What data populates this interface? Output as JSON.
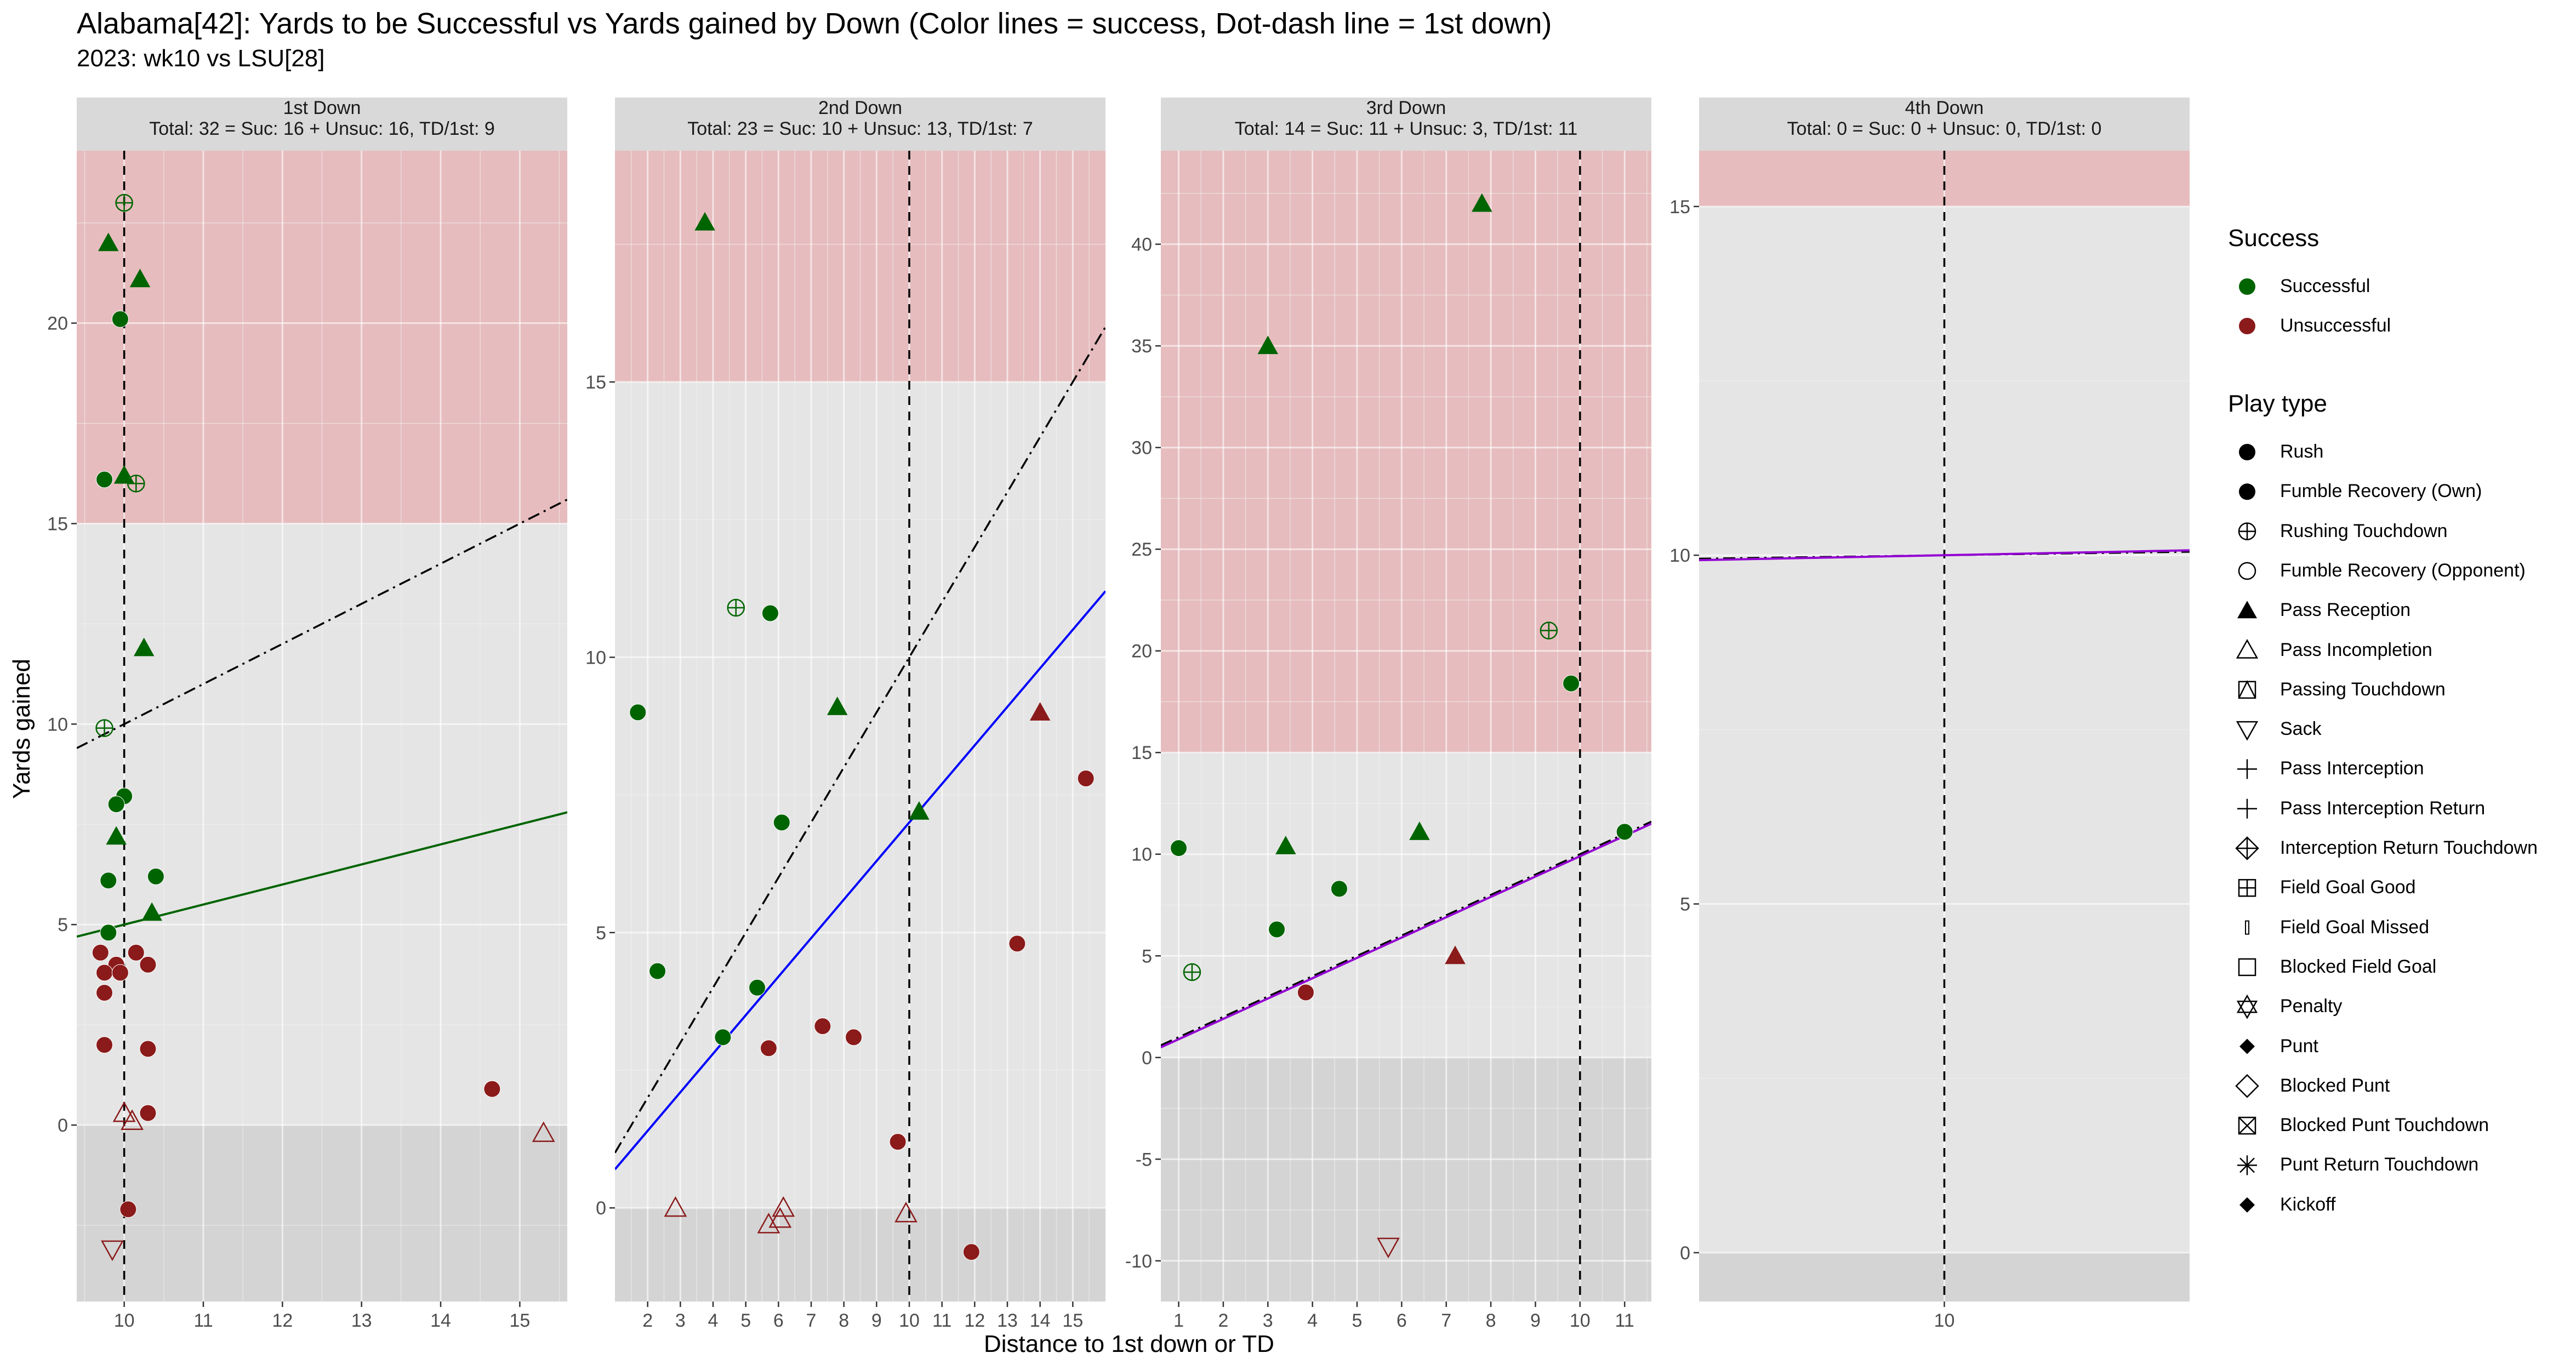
{
  "title": "Alabama[42]: Yards to be Successful vs Yards gained by Down  (Color lines = success, Dot-dash line = 1st down)",
  "subtitle": "2023: wk10 vs LSU[28]",
  "colors": {
    "successful": "#006400",
    "unsuccessful": "#8B1A1A",
    "panel_bg": "#E5E5E5",
    "red_zone": "#E6BCBE",
    "neg_zone": "#D4D4D4",
    "strip_bg": "#D9D9D9"
  },
  "legend": {
    "success_title": "Success",
    "success_items": [
      {
        "label": "Successful",
        "color": "#006400"
      },
      {
        "label": "Unsuccessful",
        "color": "#8B1A1A"
      }
    ],
    "playtype_title": "Play type",
    "playtype_items": [
      {
        "label": "Rush",
        "icon": "circle-filled"
      },
      {
        "label": "Fumble Recovery (Own)",
        "icon": "circle-filled"
      },
      {
        "label": "Rushing Touchdown",
        "icon": "circle-plus"
      },
      {
        "label": "Fumble Recovery (Opponent)",
        "icon": "circle-open"
      },
      {
        "label": "Pass Reception",
        "icon": "triangle-filled"
      },
      {
        "label": "Pass Incompletion",
        "icon": "triangle-open"
      },
      {
        "label": "Passing Touchdown",
        "icon": "square-triangle"
      },
      {
        "label": "Sack",
        "icon": "triangle-down-open"
      },
      {
        "label": "Pass Interception",
        "icon": "plus"
      },
      {
        "label": "Pass Interception Return",
        "icon": "plus"
      },
      {
        "label": "Interception Return Touchdown",
        "icon": "diamond-plus"
      },
      {
        "label": "Field Goal Good",
        "icon": "square-plus"
      },
      {
        "label": "Field Goal Missed",
        "icon": "bar"
      },
      {
        "label": "Blocked Field Goal",
        "icon": "square-open"
      },
      {
        "label": "Penalty",
        "icon": "star-of-david"
      },
      {
        "label": "Punt",
        "icon": "diamond-filled"
      },
      {
        "label": "Blocked Punt",
        "icon": "diamond-open"
      },
      {
        "label": "Blocked Punt Touchdown",
        "icon": "square-x"
      },
      {
        "label": "Punt Return Touchdown",
        "icon": "asterisk"
      },
      {
        "label": "Kickoff",
        "icon": "diamond-filled"
      }
    ]
  },
  "chart_data": [
    {
      "type": "scatter",
      "panel": "1st Down",
      "strip_title": "1st Down",
      "strip_stats": "Total: 32 = Suc: 16 + Unsuc: 16, TD/1st: 9",
      "xlabel": "Distance to 1st down or TD",
      "ylabel": "Yards gained",
      "xlim": [
        9.4,
        15.6
      ],
      "ylim": [
        -4.4,
        24.3
      ],
      "xticks": [
        10,
        11,
        12,
        13,
        14,
        15
      ],
      "yticks": [
        0,
        5,
        10,
        15,
        20
      ],
      "red_zone_from": 15,
      "first_down_x": 10,
      "success_line": {
        "x": [
          9.4,
          15.6
        ],
        "y": [
          4.7,
          7.8
        ],
        "color": "#006400"
      },
      "first_down_line": {
        "x": [
          9.4,
          15.6
        ],
        "y": [
          9.4,
          15.6
        ]
      },
      "points": [
        {
          "x": 10.0,
          "y": 23.0,
          "type": "Rushing Touchdown",
          "success": true
        },
        {
          "x": 9.8,
          "y": 22.0,
          "type": "Pass Reception",
          "success": true
        },
        {
          "x": 10.2,
          "y": 21.1,
          "type": "Pass Reception",
          "success": true
        },
        {
          "x": 9.95,
          "y": 20.1,
          "type": "Rush",
          "success": true
        },
        {
          "x": 9.75,
          "y": 16.1,
          "type": "Rush",
          "success": true
        },
        {
          "x": 10.0,
          "y": 16.2,
          "type": "Pass Reception",
          "success": true
        },
        {
          "x": 10.15,
          "y": 16.0,
          "type": "Rushing Touchdown",
          "success": true
        },
        {
          "x": 10.25,
          "y": 11.9,
          "type": "Pass Reception",
          "success": true
        },
        {
          "x": 9.75,
          "y": 9.9,
          "type": "Rushing Touchdown",
          "success": true
        },
        {
          "x": 10.0,
          "y": 8.2,
          "type": "Rush",
          "success": true
        },
        {
          "x": 9.9,
          "y": 8.0,
          "type": "Rush",
          "success": true
        },
        {
          "x": 9.9,
          "y": 7.2,
          "type": "Pass Reception",
          "success": true
        },
        {
          "x": 10.4,
          "y": 6.2,
          "type": "Rush",
          "success": true
        },
        {
          "x": 9.8,
          "y": 6.1,
          "type": "Rush",
          "success": true
        },
        {
          "x": 10.35,
          "y": 5.3,
          "type": "Pass Reception",
          "success": true
        },
        {
          "x": 9.8,
          "y": 4.8,
          "type": "Rush",
          "success": true
        },
        {
          "x": 9.7,
          "y": 4.3,
          "type": "Rush",
          "success": false
        },
        {
          "x": 10.15,
          "y": 4.3,
          "type": "Rush",
          "success": false
        },
        {
          "x": 10.3,
          "y": 4.0,
          "type": "Rush",
          "success": false
        },
        {
          "x": 9.9,
          "y": 4.0,
          "type": "Rush",
          "success": false
        },
        {
          "x": 9.75,
          "y": 3.8,
          "type": "Rush",
          "success": false
        },
        {
          "x": 9.95,
          "y": 3.8,
          "type": "Rush",
          "success": false
        },
        {
          "x": 9.75,
          "y": 3.3,
          "type": "Rush",
          "success": false
        },
        {
          "x": 9.75,
          "y": 2.0,
          "type": "Rush",
          "success": false
        },
        {
          "x": 10.3,
          "y": 1.9,
          "type": "Rush",
          "success": false
        },
        {
          "x": 14.65,
          "y": 0.9,
          "type": "Rush",
          "success": false
        },
        {
          "x": 10.0,
          "y": 0.3,
          "type": "Pass Incompletion",
          "success": false
        },
        {
          "x": 10.3,
          "y": 0.3,
          "type": "Rush",
          "success": false
        },
        {
          "x": 10.1,
          "y": 0.1,
          "type": "Pass Incompletion",
          "success": false
        },
        {
          "x": 15.3,
          "y": -0.2,
          "type": "Pass Incompletion",
          "success": false
        },
        {
          "x": 10.05,
          "y": -2.1,
          "type": "Rush",
          "success": false
        },
        {
          "x": 9.85,
          "y": -3.1,
          "type": "Sack",
          "success": false
        }
      ]
    },
    {
      "type": "scatter",
      "panel": "2nd Down",
      "strip_title": "2nd Down",
      "strip_stats": "Total: 23 = Suc: 10 + Unsuc: 13, TD/1st: 7",
      "xlabel": "Distance to 1st down or TD",
      "ylabel": "Yards gained",
      "xlim": [
        1.0,
        16.0
      ],
      "ylim": [
        -1.7,
        19.2
      ],
      "xticks": [
        2,
        3,
        4,
        5,
        6,
        7,
        8,
        9,
        10,
        11,
        12,
        13,
        14,
        15
      ],
      "yticks": [
        0,
        5,
        10,
        15
      ],
      "red_zone_from": 15,
      "first_down_x": 10,
      "success_line": {
        "x": [
          1.0,
          16.0
        ],
        "y": [
          0.7,
          11.2
        ],
        "color": "#0000FF"
      },
      "first_down_line": {
        "x": [
          1.0,
          16.0
        ],
        "y": [
          1.0,
          16.0
        ]
      },
      "points": [
        {
          "x": 3.75,
          "y": 17.9,
          "type": "Pass Reception",
          "success": true
        },
        {
          "x": 4.7,
          "y": 10.9,
          "type": "Rushing Touchdown",
          "success": true
        },
        {
          "x": 5.75,
          "y": 10.8,
          "type": "Rush",
          "success": true
        },
        {
          "x": 1.7,
          "y": 9.0,
          "type": "Rush",
          "success": true
        },
        {
          "x": 7.8,
          "y": 9.1,
          "type": "Pass Reception",
          "success": true
        },
        {
          "x": 14.0,
          "y": 9.0,
          "type": "Pass Reception",
          "success": false
        },
        {
          "x": 15.4,
          "y": 7.8,
          "type": "Rush",
          "success": false
        },
        {
          "x": 10.3,
          "y": 7.2,
          "type": "Pass Reception",
          "success": true
        },
        {
          "x": 6.1,
          "y": 7.0,
          "type": "Rush",
          "success": true
        },
        {
          "x": 13.3,
          "y": 4.8,
          "type": "Rush",
          "success": false
        },
        {
          "x": 2.3,
          "y": 4.3,
          "type": "Rush",
          "success": true
        },
        {
          "x": 5.35,
          "y": 4.0,
          "type": "Rush",
          "success": true
        },
        {
          "x": 7.35,
          "y": 3.3,
          "type": "Rush",
          "success": false
        },
        {
          "x": 8.3,
          "y": 3.1,
          "type": "Rush",
          "success": false
        },
        {
          "x": 4.3,
          "y": 3.1,
          "type": "Rush",
          "success": true
        },
        {
          "x": 5.7,
          "y": 2.9,
          "type": "Rush",
          "success": false
        },
        {
          "x": 9.65,
          "y": 1.2,
          "type": "Rush",
          "success": false
        },
        {
          "x": 2.85,
          "y": 0.0,
          "type": "Pass Incompletion",
          "success": false
        },
        {
          "x": 6.15,
          "y": 0.0,
          "type": "Pass Incompletion",
          "success": false
        },
        {
          "x": 9.9,
          "y": -0.1,
          "type": "Pass Incompletion",
          "success": false
        },
        {
          "x": 6.05,
          "y": -0.2,
          "type": "Pass Incompletion",
          "success": false
        },
        {
          "x": 5.7,
          "y": -0.3,
          "type": "Pass Incompletion",
          "success": false
        },
        {
          "x": 11.9,
          "y": -0.8,
          "type": "Rush",
          "success": false
        }
      ]
    },
    {
      "type": "scatter",
      "panel": "3rd Down",
      "strip_title": "3rd Down",
      "strip_stats": "Total: 14 = Suc: 11 + Unsuc: 3, TD/1st: 11",
      "xlabel": "Distance to 1st down or TD",
      "ylabel": "Yards gained",
      "xlim": [
        0.6,
        11.6
      ],
      "ylim": [
        -12.0,
        44.6
      ],
      "xticks": [
        1,
        2,
        3,
        4,
        5,
        6,
        7,
        8,
        9,
        10,
        11
      ],
      "yticks": [
        -10,
        -5,
        0,
        5,
        10,
        15,
        20,
        25,
        30,
        35,
        40
      ],
      "red_zone_from": 15,
      "first_down_x": 10,
      "success_line": {
        "x": [
          0.6,
          11.6
        ],
        "y": [
          0.5,
          11.5
        ],
        "color": "#9400D3"
      },
      "first_down_line": {
        "x": [
          0.6,
          11.6
        ],
        "y": [
          0.6,
          11.6
        ]
      },
      "points": [
        {
          "x": 7.8,
          "y": 42.0,
          "type": "Pass Reception",
          "success": true
        },
        {
          "x": 3.0,
          "y": 35.0,
          "type": "Pass Reception",
          "success": true
        },
        {
          "x": 9.3,
          "y": 21.0,
          "type": "Rushing Touchdown",
          "success": true
        },
        {
          "x": 9.8,
          "y": 18.4,
          "type": "Rush",
          "success": true
        },
        {
          "x": 1.0,
          "y": 10.3,
          "type": "Rush",
          "success": true
        },
        {
          "x": 3.4,
          "y": 10.4,
          "type": "Pass Reception",
          "success": true
        },
        {
          "x": 6.4,
          "y": 11.1,
          "type": "Pass Reception",
          "success": true
        },
        {
          "x": 11.0,
          "y": 11.1,
          "type": "Rush",
          "success": true
        },
        {
          "x": 4.6,
          "y": 8.3,
          "type": "Rush",
          "success": true
        },
        {
          "x": 3.2,
          "y": 6.3,
          "type": "Rush",
          "success": true
        },
        {
          "x": 7.2,
          "y": 5.0,
          "type": "Pass Reception",
          "success": false
        },
        {
          "x": 1.3,
          "y": 4.2,
          "type": "Rushing Touchdown",
          "success": true
        },
        {
          "x": 3.85,
          "y": 3.2,
          "type": "Rush",
          "success": false
        },
        {
          "x": 5.7,
          "y": -9.3,
          "type": "Sack",
          "success": false
        }
      ]
    },
    {
      "type": "scatter",
      "panel": "4th Down",
      "strip_title": "4th Down",
      "strip_stats": "Total: 0 = Suc: 0 + Unsuc: 0, TD/1st: 0",
      "xlabel": "Distance to 1st down or TD",
      "ylabel": "Yards gained",
      "xlim": [
        9.0,
        11.0
      ],
      "ylim": [
        -0.7,
        15.8
      ],
      "xticks": [
        10
      ],
      "yticks": [
        0,
        5,
        10,
        15
      ],
      "red_zone_from": 15,
      "first_down_x": 10,
      "success_line": {
        "x": [
          9.0,
          11.0
        ],
        "y": [
          9.93,
          10.07
        ],
        "color": "#9400D3"
      },
      "first_down_line": {
        "x": [
          9.0,
          11.0
        ],
        "y": [
          9.95,
          10.05
        ]
      },
      "points": []
    }
  ]
}
